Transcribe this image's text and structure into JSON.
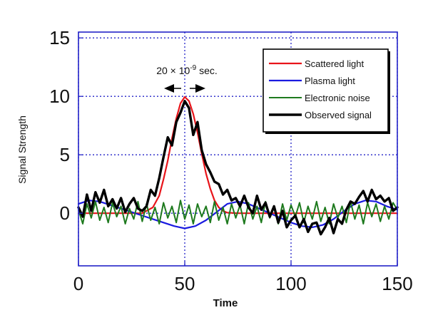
{
  "chart_data": {
    "type": "line",
    "xlabel": "Time",
    "ylabel": "Signal Strength",
    "xlim": [
      0,
      150
    ],
    "ylim": [
      -4.5,
      15.5
    ],
    "x_ticks": [
      0,
      50,
      100,
      150
    ],
    "y_ticks": [
      0,
      5,
      10,
      15
    ],
    "grid": true,
    "legend": {
      "placement": "top-right"
    },
    "annotation": {
      "text_base": "20 × 10",
      "text_exp": "-9",
      "text_unit": " sec.",
      "x": 50,
      "y": 12.5,
      "arrow_span": [
        40,
        60
      ],
      "arrow_y": 11.2
    },
    "series": [
      {
        "name": "Scattered light",
        "color": "#e8141a",
        "width": 2.2,
        "x": [
          0,
          30,
          35,
          38,
          40,
          42,
          44,
          46,
          48,
          50,
          52,
          54,
          56,
          58,
          60,
          62,
          64,
          66,
          68,
          70,
          75,
          150
        ],
        "y": [
          0,
          0,
          0.5,
          1.5,
          2.9,
          4.5,
          6.4,
          8.1,
          9.4,
          9.95,
          9.6,
          8.5,
          6.9,
          5.1,
          3.4,
          2.1,
          1.1,
          0.5,
          0.2,
          0.05,
          0,
          0
        ]
      },
      {
        "name": "Plasma light",
        "color": "#1a1ae0",
        "width": 2.2,
        "x": [
          0,
          5,
          10,
          15,
          20,
          25,
          30,
          35,
          40,
          45,
          50,
          55,
          60,
          65,
          70,
          75,
          80,
          85,
          90,
          95,
          100,
          105,
          110,
          115,
          120,
          125,
          130,
          135,
          140,
          145,
          150
        ],
        "y": [
          0.8,
          1.1,
          1.0,
          0.7,
          0.4,
          0.1,
          -0.2,
          -0.5,
          -0.8,
          -1.1,
          -1.3,
          -1.1,
          -0.6,
          0.1,
          0.8,
          1.0,
          0.8,
          0.4,
          0.0,
          -0.4,
          -0.8,
          -1.1,
          -1.2,
          -1.0,
          -0.5,
          0.2,
          0.8,
          1.1,
          1.0,
          0.6,
          0.3
        ]
      },
      {
        "name": "Electronic noise",
        "color": "#1e7a1e",
        "width": 2.0,
        "x": [
          0,
          2,
          4,
          6,
          8,
          10,
          12,
          14,
          16,
          18,
          20,
          22,
          24,
          26,
          28,
          30,
          32,
          34,
          36,
          38,
          40,
          42,
          44,
          46,
          48,
          50,
          52,
          54,
          56,
          58,
          60,
          62,
          64,
          66,
          68,
          70,
          72,
          74,
          76,
          78,
          80,
          82,
          84,
          86,
          88,
          90,
          92,
          94,
          96,
          98,
          100,
          102,
          104,
          106,
          108,
          110,
          112,
          114,
          116,
          118,
          120,
          122,
          124,
          126,
          128,
          130,
          132,
          134,
          136,
          138,
          140,
          142,
          144,
          146,
          148,
          150
        ],
        "y": [
          0.3,
          -0.9,
          0.8,
          -0.4,
          1.0,
          -0.6,
          0.5,
          -0.8,
          0.9,
          -0.3,
          0.6,
          -0.9,
          0.4,
          -0.5,
          1.0,
          -0.7,
          0.8,
          -0.6,
          0.5,
          -0.9,
          0.9,
          -0.4,
          0.6,
          -0.8,
          1.1,
          -0.5,
          0.7,
          -0.9,
          0.8,
          -0.3,
          0.6,
          -0.8,
          1.0,
          -0.6,
          0.5,
          -0.9,
          0.8,
          -0.4,
          0.7,
          -0.9,
          0.9,
          -0.5,
          0.6,
          -0.8,
          1.0,
          -0.4,
          0.5,
          -0.9,
          0.8,
          -0.6,
          0.7,
          -0.3,
          0.9,
          -0.8,
          0.6,
          -0.5,
          1.0,
          -0.7,
          0.5,
          -0.9,
          0.8,
          -0.4,
          0.6,
          -0.8,
          1.0,
          -0.5,
          0.7,
          -0.9,
          0.9,
          -0.3,
          0.8,
          -0.7,
          0.6,
          -0.5,
          0.9,
          0.3
        ]
      },
      {
        "name": "Observed signal",
        "color": "#000000",
        "width": 3.4,
        "x": [
          0,
          2,
          4,
          6,
          8,
          10,
          12,
          14,
          16,
          18,
          20,
          22,
          24,
          26,
          28,
          30,
          32,
          34,
          36,
          38,
          40,
          42,
          44,
          46,
          48,
          50,
          52,
          54,
          56,
          58,
          60,
          62,
          64,
          66,
          68,
          70,
          72,
          74,
          76,
          78,
          80,
          82,
          84,
          86,
          88,
          90,
          92,
          94,
          96,
          98,
          100,
          102,
          104,
          106,
          108,
          110,
          112,
          114,
          116,
          118,
          120,
          122,
          124,
          126,
          128,
          130,
          132,
          134,
          136,
          138,
          140,
          142,
          144,
          146,
          148,
          150
        ],
        "y": [
          0.5,
          -0.3,
          1.6,
          0.2,
          1.8,
          0.9,
          2.0,
          0.6,
          1.2,
          0.4,
          1.3,
          0.1,
          0.8,
          1.3,
          0.4,
          0.2,
          0.6,
          2.0,
          1.5,
          3.0,
          4.8,
          6.5,
          5.8,
          7.8,
          8.6,
          9.6,
          9.0,
          6.7,
          7.8,
          5.4,
          4.2,
          3.5,
          2.7,
          2.5,
          1.6,
          2.0,
          1.1,
          1.3,
          0.6,
          1.5,
          0.5,
          0.0,
          1.5,
          0.3,
          0.9,
          -0.3,
          0.6,
          -0.8,
          0.2,
          -1.2,
          -0.6,
          -0.2,
          -1.2,
          -0.5,
          -1.6,
          -0.9,
          -0.8,
          -1.8,
          -1.2,
          -0.4,
          -1.7,
          -0.5,
          -0.9,
          0.3,
          1.0,
          0.8,
          1.4,
          1.9,
          1.0,
          2.0,
          1.2,
          1.5,
          1.0,
          1.3,
          0.2,
          0.5
        ]
      }
    ]
  }
}
